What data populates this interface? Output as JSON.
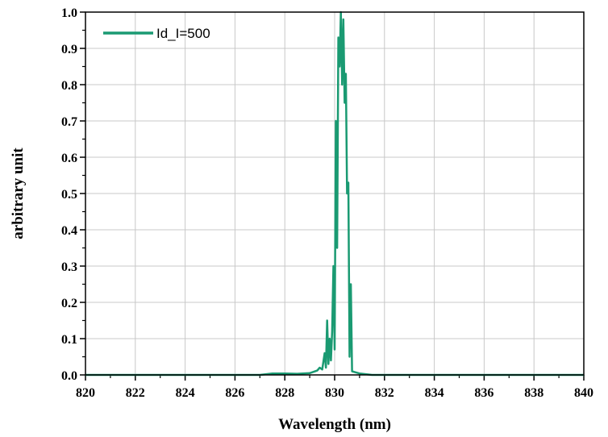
{
  "chart_data": {
    "type": "line",
    "xlabel": "Wavelength (nm)",
    "ylabel": "arbitrary unit",
    "xlim": [
      820,
      840
    ],
    "ylim": [
      0.0,
      1.0
    ],
    "x_ticks": [
      820,
      822,
      824,
      826,
      828,
      830,
      832,
      834,
      836,
      838,
      840
    ],
    "x_tick_labels": [
      "820",
      "822",
      "824",
      "826",
      "828",
      "830",
      "832",
      "834",
      "836",
      "838",
      "840"
    ],
    "y_ticks": [
      0.0,
      0.1,
      0.2,
      0.3,
      0.4,
      0.5,
      0.6,
      0.7,
      0.8,
      0.9,
      1.0
    ],
    "y_tick_labels": [
      "0.0",
      "0.1",
      "0.2",
      "0.3",
      "0.4",
      "0.5",
      "0.6",
      "0.7",
      "0.8",
      "0.9",
      "1.0"
    ],
    "grid": true,
    "legend_position": "top-left",
    "colors": {
      "series": "#1a9a72",
      "grid": "#c8c8c8",
      "axis": "#000000"
    },
    "series": [
      {
        "name": "Id_I=500",
        "x": [
          820,
          827.0,
          827.5,
          828.0,
          828.5,
          829.0,
          829.3,
          829.4,
          829.5,
          829.6,
          829.65,
          829.7,
          829.75,
          829.8,
          829.85,
          829.9,
          829.95,
          830.0,
          830.05,
          830.1,
          830.15,
          830.2,
          830.25,
          830.3,
          830.35,
          830.4,
          830.45,
          830.5,
          830.55,
          830.6,
          830.65,
          830.7,
          830.8,
          831.0,
          831.5,
          840
        ],
        "y": [
          0.0,
          0.0,
          0.004,
          0.004,
          0.003,
          0.005,
          0.012,
          0.02,
          0.015,
          0.06,
          0.02,
          0.15,
          0.03,
          0.1,
          0.04,
          0.12,
          0.3,
          0.07,
          0.7,
          0.35,
          0.93,
          0.85,
          1.0,
          0.8,
          0.98,
          0.75,
          0.83,
          0.5,
          0.53,
          0.05,
          0.25,
          0.01,
          0.008,
          0.004,
          0.0,
          0.0
        ]
      }
    ]
  }
}
